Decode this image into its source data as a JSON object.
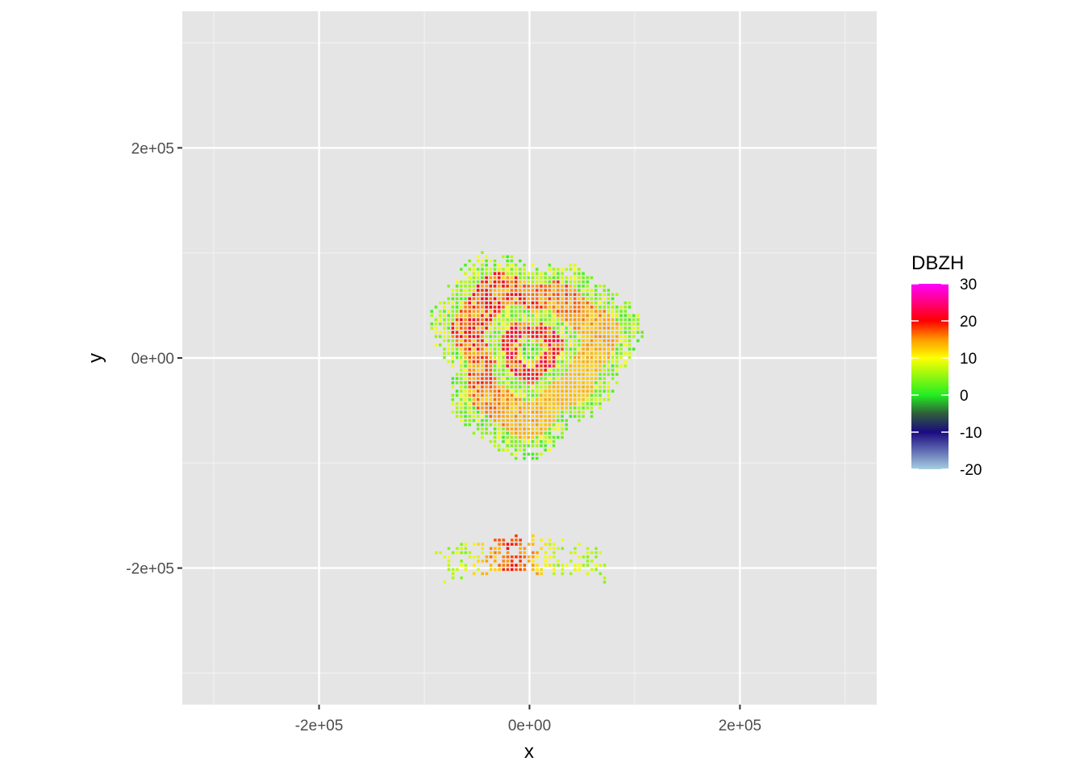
{
  "chart_data": {
    "type": "heatmap",
    "title": "",
    "xlabel": "x",
    "ylabel": "y",
    "xlim": [
      -330000,
      330000
    ],
    "ylim": [
      -330000,
      330000
    ],
    "x_ticks": [
      {
        "value": -200000,
        "label": "-2e+05"
      },
      {
        "value": 0,
        "label": "0e+00"
      },
      {
        "value": 200000,
        "label": "2e+05"
      }
    ],
    "y_ticks": [
      {
        "value": 200000,
        "label": "2e+05"
      },
      {
        "value": 0,
        "label": "0e+00"
      },
      {
        "value": -200000,
        "label": "-2e+05"
      }
    ],
    "minor_breaks": [
      -300000,
      -100000,
      100000,
      300000
    ],
    "grid": true,
    "background": "#e5e5e5",
    "legend": {
      "title": "DBZH",
      "placement": "right",
      "range": [
        -20,
        30
      ],
      "labels": [
        "30",
        "20",
        "10",
        "0",
        "-10",
        "-20"
      ],
      "label_values": [
        30,
        20,
        10,
        0,
        -10,
        -20
      ],
      "color_stops": [
        {
          "value": -20,
          "color": "#a6cee3"
        },
        {
          "value": -10,
          "color": "#1a0a80"
        },
        {
          "value": -5,
          "color": "#2f5d3a"
        },
        {
          "value": 0,
          "color": "#22ee22"
        },
        {
          "value": 10,
          "color": "#ffff00"
        },
        {
          "value": 15,
          "color": "#ff9900"
        },
        {
          "value": 20,
          "color": "#ff0000"
        },
        {
          "value": 30,
          "color": "#ff00ff"
        }
      ]
    },
    "echo_regions": [
      {
        "name": "central ring of echoes",
        "center": [
          0,
          5000
        ],
        "radius_km": 105,
        "peak_dbzh": 22
      },
      {
        "name": "southern band",
        "center": [
          -10000,
          -195000
        ],
        "extent_km": [
          160,
          50
        ],
        "peak_dbzh": 22
      }
    ]
  }
}
